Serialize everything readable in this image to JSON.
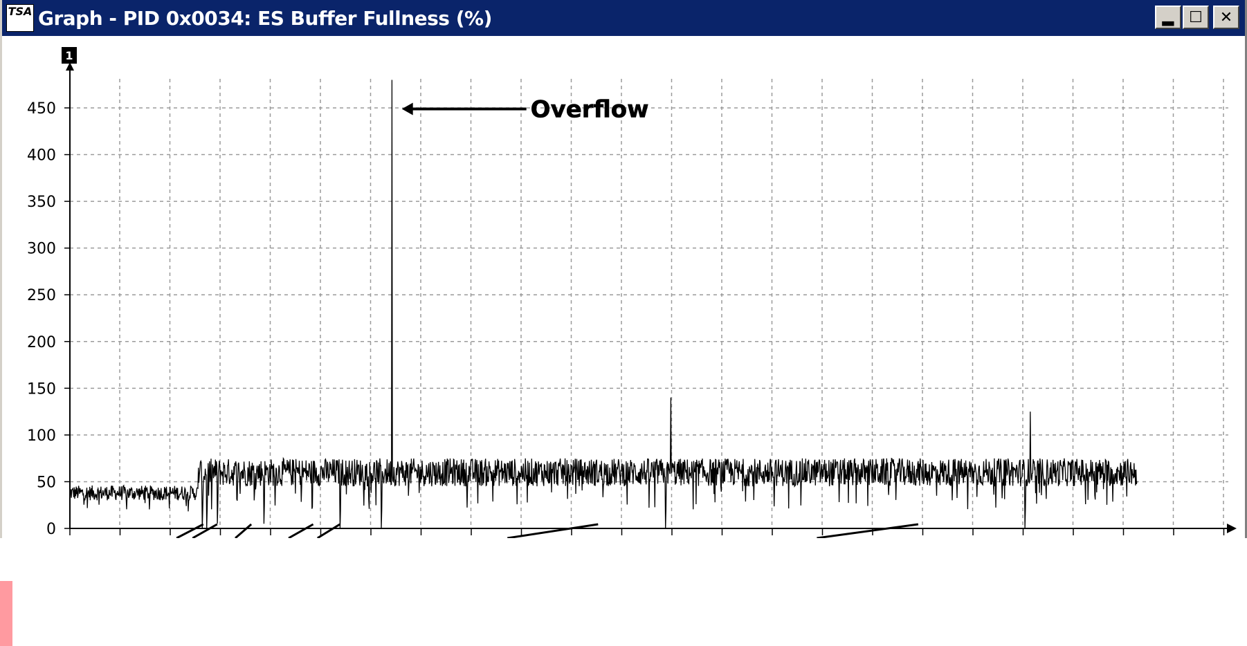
{
  "window": {
    "title": "Graph - PID 0x0034: ES Buffer Fullness (%)",
    "icon": "tsa-app-icon",
    "icon_label": "TSA",
    "controls": [
      "minimize-icon",
      "maximize-icon",
      "close-icon"
    ]
  },
  "chart_data": {
    "type": "line",
    "title": "",
    "xlabel": "",
    "ylabel": "",
    "y_axis_marker": "1",
    "yticks": [
      0,
      50,
      100,
      150,
      200,
      250,
      300,
      350,
      400,
      450
    ],
    "ylim": [
      0,
      500
    ],
    "grid": true,
    "grid_style": "dashed",
    "line_color": "#000000",
    "annotation": {
      "text": "Overflow",
      "target": {
        "x_fraction": 0.302,
        "y": 440
      }
    },
    "series": [
      {
        "segments": [
          {
            "x_start": 0.0,
            "x_end": 0.12,
            "mean": 38,
            "amplitude": 8
          },
          {
            "x_start": 0.12,
            "x_end": 1.0,
            "mean": 60,
            "amplitude": 15
          }
        ],
        "spikes": [
          {
            "x": 0.302,
            "y": 480
          },
          {
            "x": 0.563,
            "y": 140
          },
          {
            "x": 0.9,
            "y": 125
          }
        ],
        "dips": [
          {
            "x": 0.124,
            "y": 0
          },
          {
            "x": 0.128,
            "y": 0
          },
          {
            "x": 0.138,
            "y": 5
          },
          {
            "x": 0.182,
            "y": 5
          },
          {
            "x": 0.253,
            "y": 0
          },
          {
            "x": 0.292,
            "y": 0
          },
          {
            "x": 0.558,
            "y": 0
          },
          {
            "x": 0.895,
            "y": 0
          }
        ]
      }
    ]
  }
}
